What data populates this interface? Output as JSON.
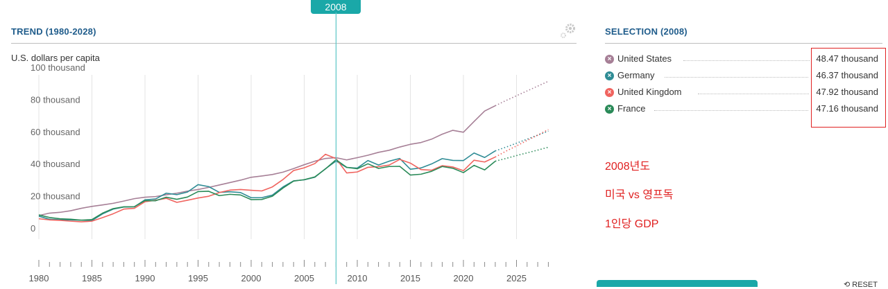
{
  "marker": {
    "year": "2008"
  },
  "trend": {
    "title": "TREND (1980-2028)",
    "units": "U.S. dollars per capita"
  },
  "selection": {
    "title": "SELECTION (2008)",
    "rows": [
      {
        "name": "United States",
        "value": "48.47 thousand",
        "color": "#a67f96"
      },
      {
        "name": "Germany",
        "value": "46.37 thousand",
        "color": "#2f8c95"
      },
      {
        "name": "United Kingdom",
        "value": "47.92 thousand",
        "color": "#f0645f"
      },
      {
        "name": "France",
        "value": "47.16 thousand",
        "color": "#2a8a58"
      }
    ]
  },
  "notes": [
    "2008년도",
    "미국 vs 영프독",
    "1인당 GDP"
  ],
  "reset_label": "⟲ RESET",
  "chart_data": {
    "type": "line",
    "title": "TREND (1980-2028)",
    "ylabel": "U.S. dollars per capita",
    "x": [
      1980,
      1981,
      1982,
      1983,
      1984,
      1985,
      1986,
      1987,
      1988,
      1989,
      1990,
      1991,
      1992,
      1993,
      1994,
      1995,
      1996,
      1997,
      1998,
      1999,
      2000,
      2001,
      2002,
      2003,
      2004,
      2005,
      2006,
      2007,
      2008,
      2009,
      2010,
      2011,
      2012,
      2013,
      2014,
      2015,
      2016,
      2017,
      2018,
      2019,
      2020,
      2021,
      2022,
      2023
    ],
    "forecast_x": [
      2023,
      2024,
      2025,
      2026,
      2027,
      2028
    ],
    "xlim": [
      1980,
      2028
    ],
    "ylim": [
      0,
      100
    ],
    "yticks": [
      0,
      20,
      40,
      60,
      80,
      100
    ],
    "ytick_labels": [
      "0",
      "20 thousand",
      "40 thousand",
      "60 thousand",
      "80 thousand",
      "100 thousand"
    ],
    "xticks": [
      1980,
      1985,
      1990,
      1995,
      2000,
      2005,
      2010,
      2015,
      2020,
      2025
    ],
    "xtick_labels": [
      "1980",
      "1985",
      "1990",
      "1995",
      "2000",
      "2005",
      "2010",
      "2015",
      "2020",
      "2025"
    ],
    "marker_year": 2008,
    "series": [
      {
        "name": "United States",
        "color": "#a67f96",
        "values": [
          12.5,
          14,
          14.5,
          15.5,
          17,
          18.2,
          19.1,
          20.1,
          21.5,
          23,
          23.9,
          24.3,
          25.4,
          26.4,
          27.7,
          28.7,
          30,
          31.5,
          33,
          34.5,
          36.3,
          37.1,
          38,
          39.5,
          41.7,
          44.1,
          46.3,
          48,
          48.5,
          47.1,
          48.5,
          50,
          51.8,
          53.1,
          55.1,
          56.8,
          57.9,
          60,
          63.1,
          65.5,
          64.3,
          71,
          77.5,
          80.8
        ],
        "forecast": [
          80.8,
          84,
          87,
          90,
          93,
          96
        ]
      },
      {
        "name": "Germany",
        "color": "#2f8c95",
        "values": [
          12.1,
          10.2,
          9.9,
          9.8,
          9.6,
          9.4,
          13.5,
          16.5,
          17.8,
          17.9,
          22.3,
          22.8,
          26.4,
          25.5,
          27.1,
          31.7,
          30.5,
          26.9,
          27.3,
          26.8,
          23.6,
          23.6,
          25.2,
          30.3,
          34.1,
          34.7,
          36.3,
          41.6,
          46.4,
          42.4,
          42,
          46.7,
          43.9,
          46.3,
          48,
          41.3,
          42.1,
          44.6,
          47.9,
          46.8,
          46.7,
          51.4,
          48.6,
          52.7
        ],
        "forecast": [
          52.7,
          55,
          57.5,
          60,
          62.5,
          65
        ]
      },
      {
        "name": "United Kingdom",
        "color": "#f0645f",
        "values": [
          10.5,
          9.8,
          9.5,
          9,
          8.6,
          9,
          11.2,
          13.6,
          16.5,
          17,
          21.1,
          22,
          23.2,
          20.7,
          22,
          23.4,
          24.5,
          26.8,
          28.3,
          28.7,
          28.2,
          27.8,
          30.3,
          34.9,
          40.5,
          42.2,
          44.8,
          50.6,
          47.9,
          39,
          39.6,
          42.5,
          42.9,
          43.9,
          47.4,
          45.1,
          41.1,
          40.7,
          43.5,
          42.7,
          40.4,
          46.9,
          45.8,
          48.9
        ],
        "forecast": [
          48.9,
          52.5,
          55.8,
          59.2,
          62.5,
          66
        ]
      },
      {
        "name": "France",
        "color": "#2a8a58",
        "values": [
          12.9,
          11.3,
          10.5,
          10.2,
          9.6,
          10,
          14,
          16.8,
          17.9,
          18,
          21.8,
          21.7,
          23.9,
          22.6,
          24,
          27.4,
          27.6,
          24.9,
          25.7,
          25.3,
          22.4,
          22.5,
          24.5,
          29.6,
          33.9,
          34.8,
          36.5,
          41.5,
          47.2,
          42.5,
          41.6,
          44.7,
          41.8,
          43,
          43.1,
          37.7,
          38.2,
          40,
          43,
          41.9,
          39.2,
          43.7,
          40.9,
          46.3
        ],
        "forecast": [
          46.3,
          48,
          49.8,
          51.5,
          53.2,
          55
        ]
      }
    ]
  }
}
